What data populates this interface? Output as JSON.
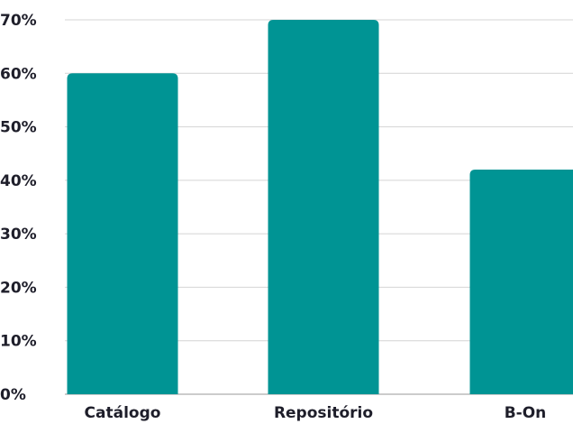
{
  "chart_data": {
    "type": "bar",
    "title": "",
    "xlabel": "",
    "ylabel": "",
    "categories": [
      "Catálogo",
      "Repositório",
      "B-On"
    ],
    "values": [
      60,
      70,
      42
    ],
    "value_unit": "%",
    "ylim": [
      0,
      70
    ],
    "yticks": [
      0,
      10,
      20,
      30,
      40,
      50,
      60,
      70
    ],
    "ytick_labels": [
      "0%",
      "10%",
      "20%",
      "30%",
      "40%",
      "50%",
      "60%",
      "70%"
    ],
    "grid": true,
    "legend": "none",
    "bar_color": "#009494"
  }
}
